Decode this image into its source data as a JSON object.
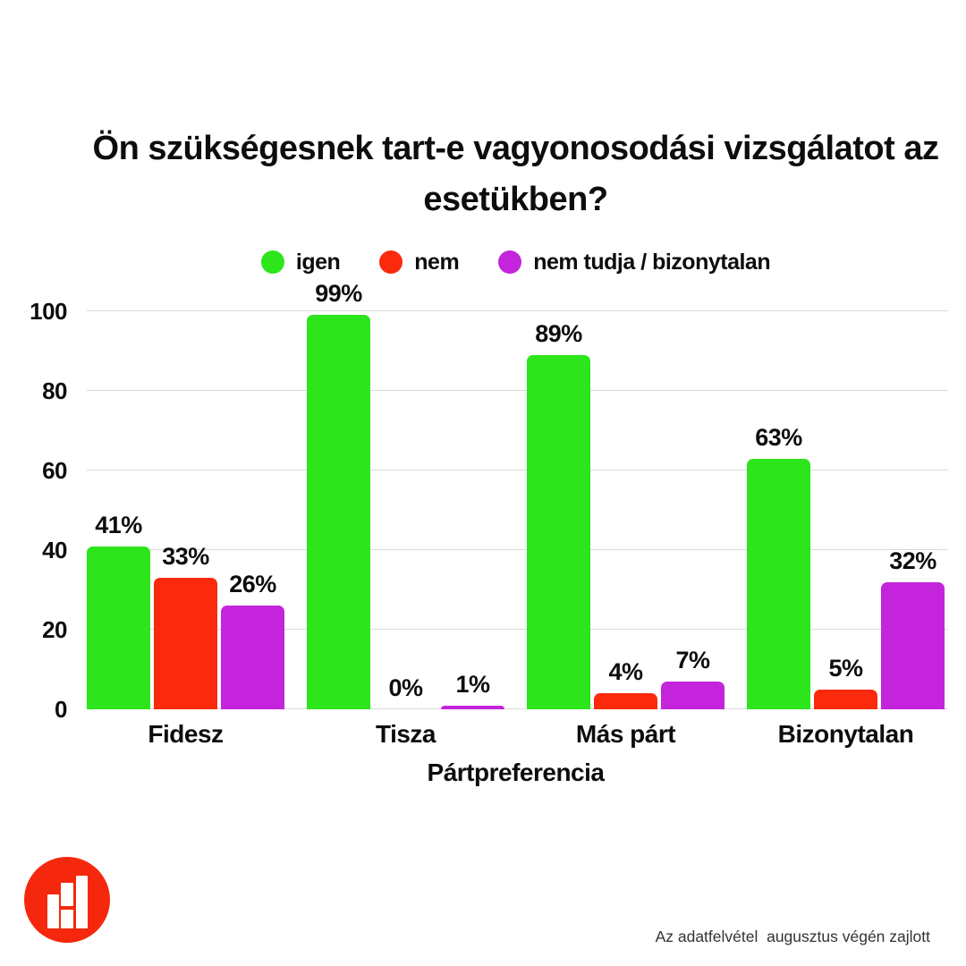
{
  "title": "Ön szükségesnek tart-e vagyonosodási vizsgálatot az esetükben?",
  "chart_data": {
    "type": "bar",
    "title": "Ön szükségesnek tart-e vagyonosodási vizsgálatot az esetükben?",
    "categories": [
      "Fidesz",
      "Tisza",
      "Más párt",
      "Bizonytalan"
    ],
    "series": [
      {
        "name": "igen",
        "color": "#2CE51A",
        "values": [
          41,
          99,
          89,
          63
        ]
      },
      {
        "name": "nem",
        "color": "#FB2A0C",
        "values": [
          33,
          0,
          4,
          5
        ]
      },
      {
        "name": "nem tudja / bizonytalan",
        "color": "#C424DB",
        "values": [
          26,
          1,
          7,
          32
        ]
      }
    ],
    "value_suffix": "%",
    "xlabel": "Pártpreferencia",
    "ylabel": "",
    "ylim": [
      0,
      100
    ],
    "yticks": [
      0,
      20,
      40,
      60,
      80,
      100
    ],
    "grid": true,
    "legend_position": "top",
    "grid_color": "#dbdbdb",
    "text_color": "#0d0d0d"
  },
  "footer": {
    "note": "Az adatfelvétel  augusztus végén zajlott"
  },
  "logo": {
    "icon": "bar-chart-icon",
    "circle_color": "#F5280D",
    "bar_color": "#ffffff"
  }
}
